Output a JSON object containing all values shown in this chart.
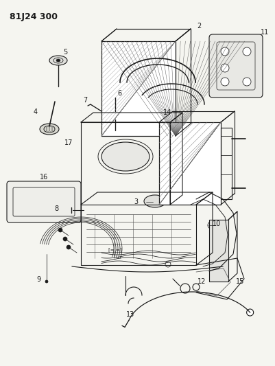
{
  "title": "81J24 300",
  "bg_color": "#f5f5f0",
  "line_color": "#1a1a1a",
  "title_fontsize": 9,
  "label_fontsize": 7,
  "fig_width": 4.01,
  "fig_height": 5.33,
  "dpi": 100
}
